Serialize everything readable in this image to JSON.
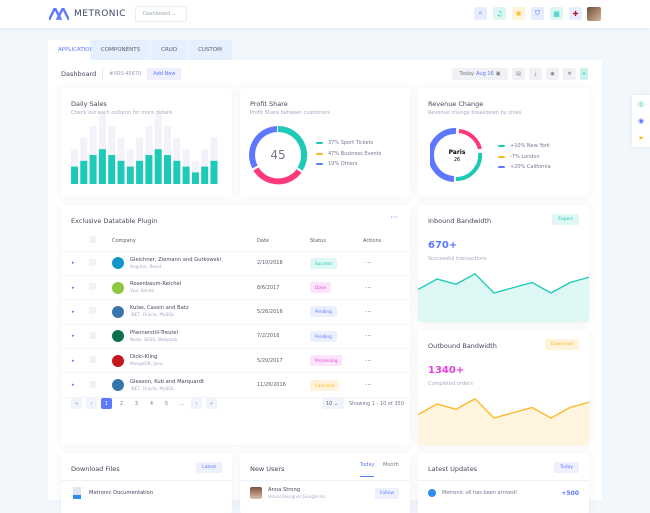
{
  "header": {
    "brand": "METRONIC",
    "menu": "Dashboard",
    "icons": [
      {
        "name": "search-icon",
        "glyph": "⌕",
        "bg": "#e8ecff",
        "fg": "#5d78ff"
      },
      {
        "name": "bell-icon",
        "glyph": "♫",
        "bg": "#dcf7f2",
        "fg": "#1dc9b7"
      },
      {
        "name": "sun-icon",
        "glyph": "✺",
        "bg": "#fff3dc",
        "fg": "#ffb822"
      },
      {
        "name": "cart-icon",
        "glyph": "⛉",
        "bg": "#e8ecff",
        "fg": "#5d78ff"
      },
      {
        "name": "apps-icon",
        "glyph": "▦",
        "bg": "#dcf7f2",
        "fg": "#1dc9b7"
      },
      {
        "name": "flag-uk-icon",
        "glyph": "✚",
        "bg": "#e8ecff",
        "fg": "#c8102e"
      }
    ]
  },
  "tabs": [
    "APPLICATION",
    "COMPONENTS",
    "CRUD",
    "CUSTOM"
  ],
  "subheader": {
    "title": "Dashboard",
    "code": "#XRS-45670",
    "add": "Add New",
    "today": "Today",
    "date": "Aug 16"
  },
  "daily_sales": {
    "title": "Daily Sales",
    "subtitle": "Check out each collumn for more details",
    "chart_data": {
      "type": "bar",
      "values": [
        3,
        4,
        5,
        6,
        5,
        4,
        3,
        4,
        5,
        6,
        5,
        4,
        3,
        2,
        3,
        4
      ],
      "totals": [
        6,
        8,
        10,
        12,
        10,
        8,
        6,
        8,
        10,
        12,
        10,
        8,
        6,
        4,
        6,
        8
      ],
      "color": "#1dc9b7"
    }
  },
  "profit_share": {
    "title": "Profit Share",
    "subtitle": "Profit Share between customers",
    "center": "45",
    "legend": [
      {
        "label": "37% Sport Tickets",
        "color": "#1dc9b7"
      },
      {
        "label": "47% Business Events",
        "color": "#ffb822"
      },
      {
        "label": "19% Others",
        "color": "#5d78ff"
      }
    ]
  },
  "revenue_change": {
    "title": "Revenue Change",
    "subtitle": "Revenue change breakdown by cities",
    "center_label": "Paris",
    "center_value": "26",
    "legend": [
      {
        "label": "+10% New York",
        "color": "#1dc9b7"
      },
      {
        "label": "-7% London",
        "color": "#ffb822"
      },
      {
        "label": "+20% California",
        "color": "#5d78ff"
      }
    ]
  },
  "datatable": {
    "title": "Exclusive Datatable Plugin",
    "columns": [
      "Company",
      "Date",
      "Status",
      "Actions"
    ],
    "rows": [
      {
        "name": "Gleichner, Ziemann and Gutkowski",
        "tags": "Angular, React",
        "date": "2/10/2018",
        "status": "Success",
        "sbg": "#e0f8f4",
        "sfg": "#1dc9b7",
        "logo": "#1296c7"
      },
      {
        "name": "Rosenbaum-Reichel",
        "tags": "Vue, Kendo",
        "date": "8/6/2017",
        "status": "Done",
        "sbg": "#fde3fb",
        "sfg": "#e83ede",
        "logo": "#8dc63f"
      },
      {
        "name": "Kulas, Cassin and Batz",
        "tags": ".NET, Oracle, MySQL",
        "date": "5/26/2016",
        "status": "Pending",
        "sbg": "#eceffe",
        "sfg": "#5d78ff",
        "logo": "#3776ab"
      },
      {
        "name": "Pfannerstill-Treutel",
        "tags": "Node, SASS, Webpack",
        "date": "7/2/2016",
        "status": "Pending",
        "sbg": "#eceffe",
        "sfg": "#5d78ff",
        "logo": "#0b6e4f"
      },
      {
        "name": "Dicki-Kling",
        "tags": "MongoDB, Java",
        "date": "5/20/2017",
        "status": "Processing",
        "sbg": "#fde3fb",
        "sfg": "#e83ede",
        "logo": "#c4161c"
      },
      {
        "name": "Gleason, Kub and Marquardt",
        "tags": ".NET, Oracle, MySQL",
        "date": "11/26/2016",
        "status": "Canceled",
        "sbg": "#fff3dc",
        "sfg": "#ffb822",
        "logo": "#3776ab"
      }
    ],
    "pages": [
      "«",
      "‹",
      "1",
      "2",
      "3",
      "4",
      "5",
      "...",
      "›",
      "»"
    ],
    "per_page": "10",
    "showing": "Showing 1 - 10 of 350"
  },
  "inbound": {
    "title": "Inbound Bandwidth",
    "button": "Export",
    "value": "670+",
    "label": "Successful transactions",
    "chart_data": {
      "type": "area",
      "values": [
        30,
        60,
        45,
        75,
        20,
        35,
        50,
        20,
        50,
        65
      ],
      "color": "#1dc9b7"
    }
  },
  "outbound": {
    "title": "Outbound Bandwidth",
    "button": "Download",
    "value": "1340+",
    "label": "Completed orders",
    "chart_data": {
      "type": "area",
      "values": [
        30,
        60,
        45,
        75,
        20,
        35,
        50,
        20,
        50,
        65
      ],
      "color": "#ffb822"
    }
  },
  "downloads": {
    "title": "Download Files",
    "button": "Latest",
    "item": "Metronic Documentation"
  },
  "new_users": {
    "title": "New Users",
    "tabs": [
      "Today",
      "Month"
    ],
    "user": "Anna Strong",
    "role": "Visual Designer,Google Inc",
    "follow": "Follow"
  },
  "updates": {
    "title": "Latest Updates",
    "button": "Today",
    "item": "Metronic v6 has been arrived!",
    "value": "+500"
  }
}
